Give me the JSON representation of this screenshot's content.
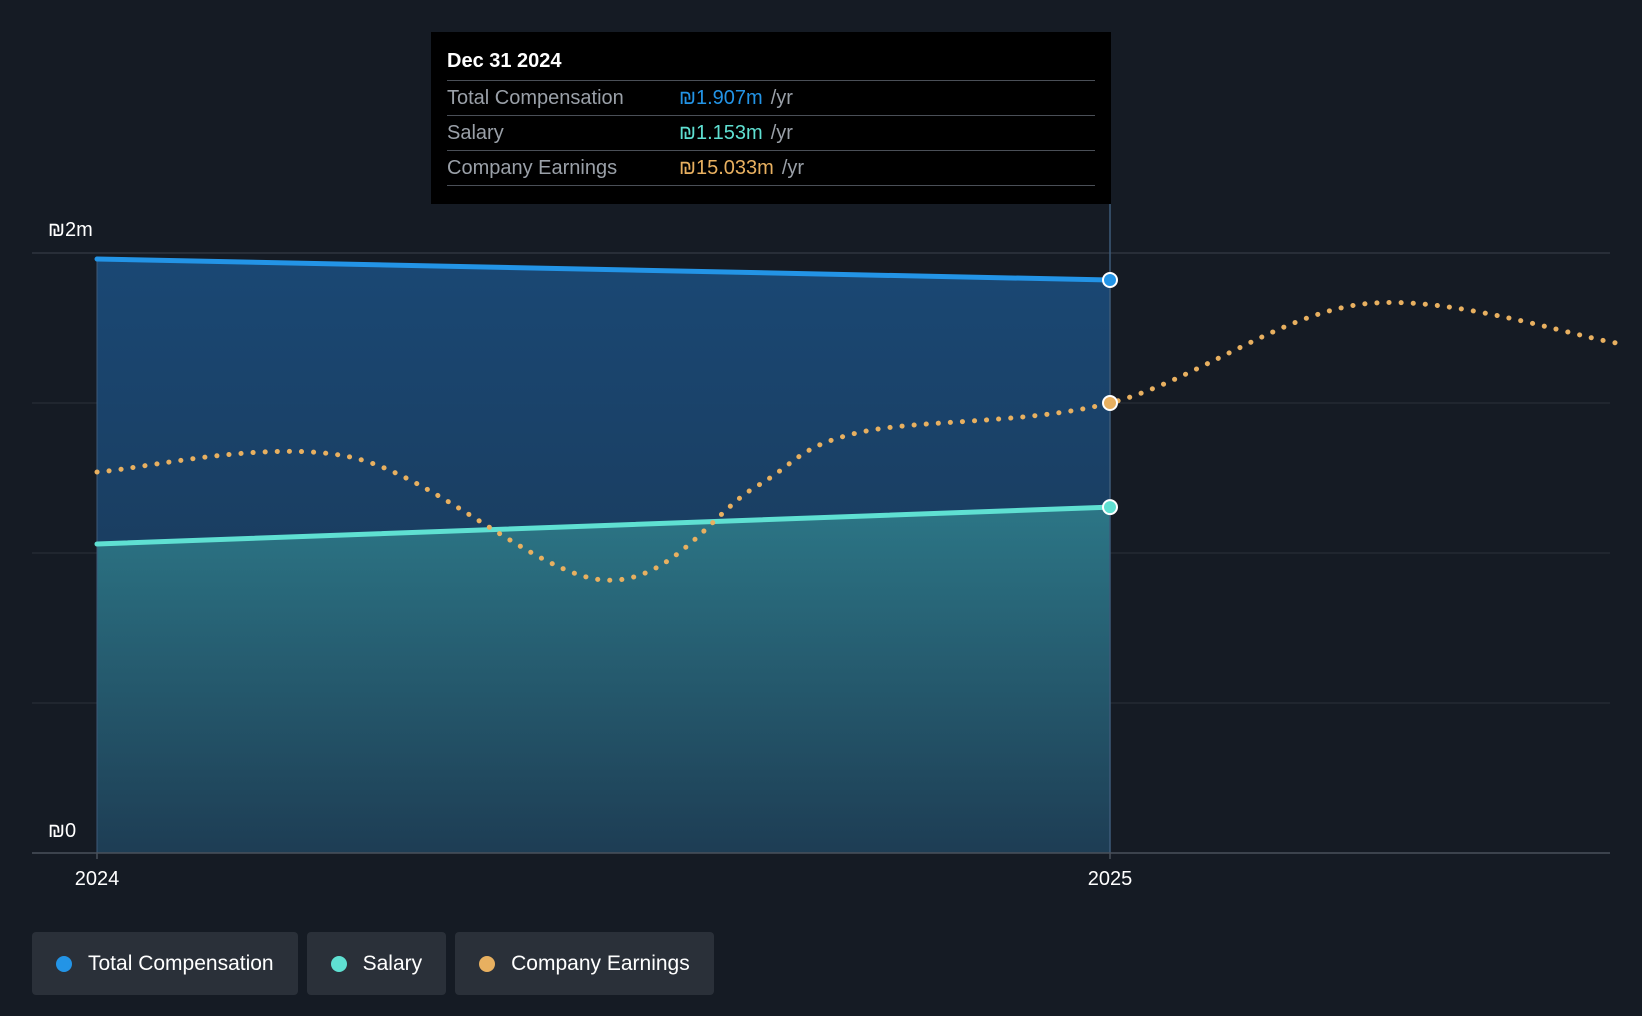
{
  "chart_data": {
    "type": "area",
    "title": "",
    "xlabel": "",
    "ylabel": "",
    "x_ticks": [
      "2024",
      "2025"
    ],
    "y_ticks": [
      "₪0",
      "₪2m"
    ],
    "ylim": [
      0,
      2
    ],
    "series": [
      {
        "name": "Total Compensation",
        "color": "#2394e6",
        "x": [
          2024.0,
          2025.0
        ],
        "values": [
          1.98,
          1.91
        ]
      },
      {
        "name": "Salary",
        "color": "#5fe0d2",
        "x": [
          2024.0,
          2025.0
        ],
        "values": [
          1.03,
          1.153
        ]
      },
      {
        "name": "Company Earnings",
        "color": "#e8b060",
        "style": "dotted",
        "note": "plotted on separate scale; tooltip value ₪15.033m /yr at Dec 31 2024",
        "x": [
          2024.0,
          2024.25,
          2024.5,
          2024.65,
          2024.75,
          2025.0,
          2025.25,
          2025.5
        ],
        "values": [
          1.27,
          1.32,
          0.91,
          1.22,
          1.4,
          1.5,
          1.83,
          1.7
        ]
      }
    ],
    "highlight_x": 2025.0
  },
  "tooltip": {
    "date": "Dec 31 2024",
    "rows": [
      {
        "label": "Total Compensation",
        "value": "₪1.907m",
        "unit": "/yr"
      },
      {
        "label": "Salary",
        "value": "₪1.153m",
        "unit": "/yr"
      },
      {
        "label": "Company Earnings",
        "value": "₪15.033m",
        "unit": "/yr"
      }
    ]
  },
  "legend": [
    {
      "label": "Total Compensation",
      "color": "#2394e6"
    },
    {
      "label": "Salary",
      "color": "#5fe0d2"
    },
    {
      "label": "Company Earnings",
      "color": "#e8b060"
    }
  ]
}
